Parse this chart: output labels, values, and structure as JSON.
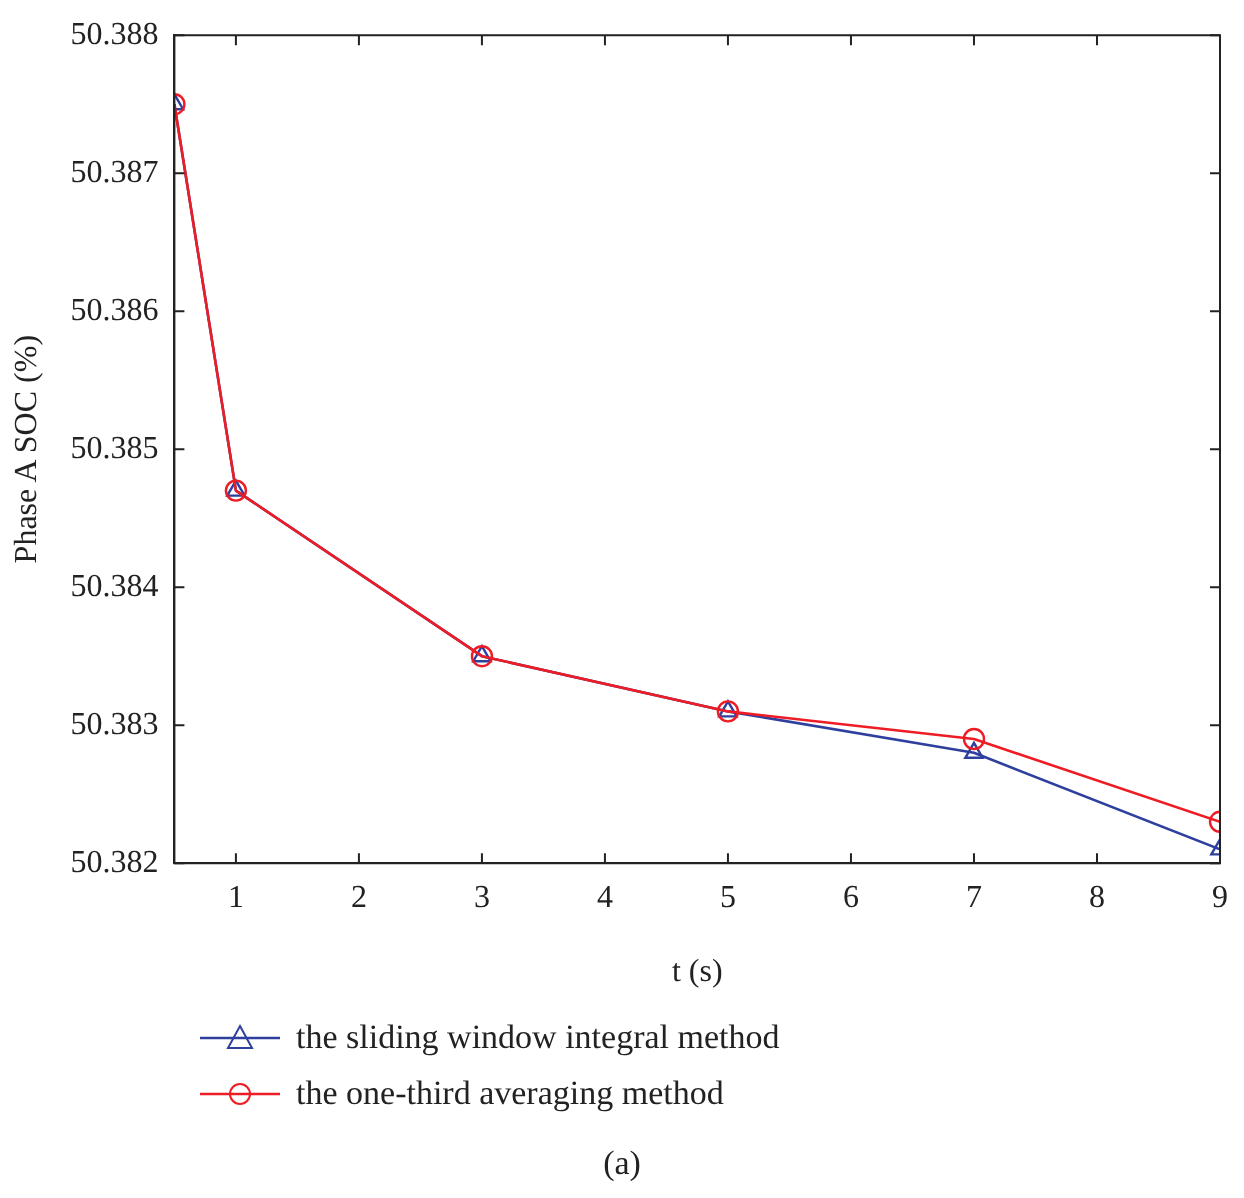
{
  "chart_data": {
    "type": "line",
    "xlabel": "t (s)",
    "ylabel": "Phase A SOC (%)",
    "annotations": [
      "(a)"
    ],
    "x": [
      0.5,
      1,
      3,
      5,
      7,
      9
    ],
    "series": [
      {
        "name": "the sliding window integral method",
        "color": "#2e3f9e",
        "marker": "triangle",
        "values": [
          50.3875,
          50.3847,
          50.3835,
          50.3831,
          50.3828,
          50.3821
        ]
      },
      {
        "name": "the one-third averaging method",
        "color": "#ee1c24",
        "marker": "circle",
        "values": [
          50.3875,
          50.3847,
          50.3835,
          50.3831,
          50.3829,
          50.3823
        ]
      }
    ],
    "xlim": [
      0.5,
      9
    ],
    "xticks": [
      1,
      2,
      3,
      4,
      5,
      6,
      7,
      8,
      9
    ],
    "ylim": [
      50.382,
      50.388
    ],
    "yticks": [
      50.382,
      50.383,
      50.384,
      50.385,
      50.386,
      50.387,
      50.388
    ],
    "grid": false,
    "legend": "bottom",
    "line_style": "solid"
  }
}
